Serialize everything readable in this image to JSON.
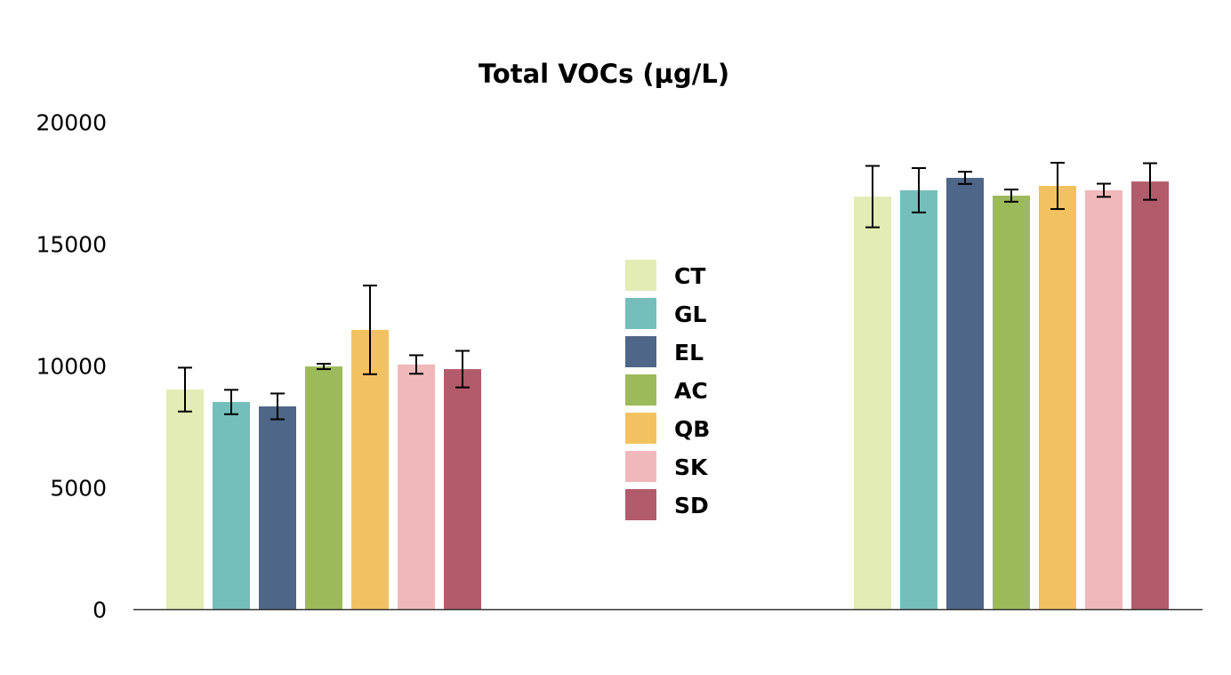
{
  "chart_data": {
    "type": "bar",
    "title": "Total VOCs (µg/L)",
    "xlabel": "",
    "ylabel": "",
    "ylim": [
      0,
      20000
    ],
    "yticks": [
      "0",
      "5000",
      "10000",
      "15000",
      "20000"
    ],
    "grid": false,
    "legend_placement": "center",
    "categories": [
      "",
      ""
    ],
    "series": [
      {
        "name": "CT",
        "color": "#e2ecb4",
        "values": [
          9030,
          16950
        ],
        "errors": [
          900,
          1260
        ]
      },
      {
        "name": "GL",
        "color": "#74bfbb",
        "values": [
          8520,
          17210
        ],
        "errors": [
          500,
          910
        ]
      },
      {
        "name": "EL",
        "color": "#4e6688",
        "values": [
          8340,
          17720
        ],
        "errors": [
          530,
          250
        ]
      },
      {
        "name": "AC",
        "color": "#9dba5b",
        "values": [
          9980,
          16990
        ],
        "errors": [
          110,
          250
        ]
      },
      {
        "name": "QB",
        "color": "#f2c261",
        "values": [
          11480,
          17390
        ],
        "errors": [
          1820,
          950
        ]
      },
      {
        "name": "SK",
        "color": "#f1b8bb",
        "values": [
          10060,
          17210
        ],
        "errors": [
          380,
          270
        ]
      },
      {
        "name": "SD",
        "color": "#b25b6b",
        "values": [
          9870,
          17570
        ],
        "errors": [
          750,
          750
        ]
      }
    ]
  }
}
